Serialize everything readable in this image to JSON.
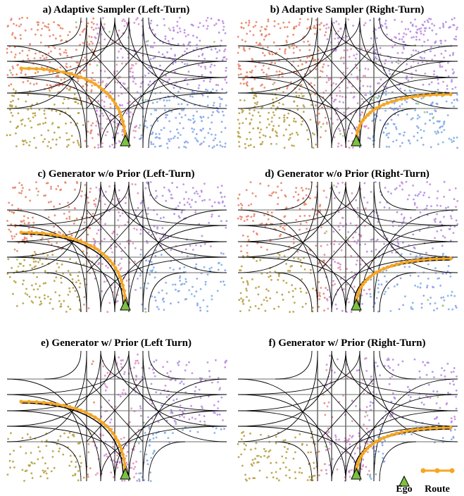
{
  "figure": {
    "panels": [
      {
        "title": "a) Adaptive Sampler (Left-Turn)",
        "turn": "left",
        "variant": "sampler",
        "seed": 11
      },
      {
        "title": "b) Adaptive Sampler (Right-Turn)",
        "turn": "right",
        "variant": "sampler",
        "seed": 23
      },
      {
        "title": "c) Generator w/o Prior (Left-Turn)",
        "turn": "left",
        "variant": "noprior",
        "seed": 37
      },
      {
        "title": "d) Generator w/o Prior (Right-Turn)",
        "turn": "right",
        "variant": "noprior",
        "seed": 41
      },
      {
        "title": "e) Generator w/ Prior (Left Turn)",
        "turn": "left",
        "variant": "prior",
        "seed": 53
      },
      {
        "title": "f) Generator w/ Prior (Right-Turn)",
        "turn": "right",
        "variant": "prior",
        "seed": 67
      }
    ],
    "legend": {
      "ego_label": "Ego",
      "route_label": "Route"
    },
    "colors": {
      "route": "#f5a623",
      "ego_fill": "#7cc242",
      "road_line": "#000000",
      "lane_line": "#6b6b6b",
      "point_palette": [
        "#e8855c",
        "#e8857a",
        "#c7a35a",
        "#b8a040",
        "#c58be0",
        "#a98fe6",
        "#8aa0e8",
        "#7fb0e8",
        "#e890b5",
        "#9ccd6a"
      ]
    }
  }
}
